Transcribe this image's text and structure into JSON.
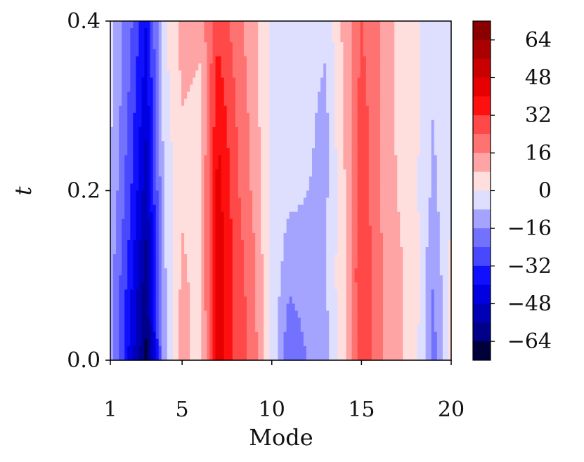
{
  "chart_data": {
    "type": "heatmap",
    "subtype": "filled-contour",
    "title": "",
    "xlabel": "Mode",
    "ylabel": "t",
    "xlim": [
      1,
      20
    ],
    "ylim": [
      0.0,
      0.4
    ],
    "x_ticks": [
      1,
      5,
      10,
      15,
      20
    ],
    "x_tick_labels": [
      "1",
      "5",
      "10",
      "15",
      "20"
    ],
    "y_ticks": [
      0.0,
      0.2,
      0.4
    ],
    "y_tick_labels": [
      "0.0",
      "0.2",
      "0.4"
    ],
    "x": [
      1,
      2,
      3,
      4,
      5,
      6,
      7,
      8,
      9,
      10,
      11,
      12,
      13,
      14,
      15,
      16,
      17,
      18,
      19,
      20
    ],
    "y": [
      0.0,
      0.1,
      0.2,
      0.3,
      0.4
    ],
    "z": [
      [
        -10,
        -40,
        -66,
        -12,
        14,
        2,
        44,
        30,
        20,
        -2,
        -24,
        -16,
        -12,
        6,
        30,
        18,
        10,
        4,
        -20,
        2
      ],
      [
        -12,
        -34,
        -60,
        -10,
        10,
        4,
        46,
        30,
        18,
        -2,
        -14,
        -10,
        -8,
        6,
        32,
        18,
        10,
        4,
        -16,
        2
      ],
      [
        -8,
        -28,
        -52,
        -6,
        6,
        4,
        44,
        26,
        14,
        -2,
        -6,
        -8,
        -10,
        6,
        30,
        16,
        8,
        2,
        -10,
        0
      ],
      [
        -6,
        -24,
        -46,
        -4,
        8,
        6,
        38,
        24,
        12,
        -2,
        -4,
        -6,
        -10,
        8,
        28,
        16,
        6,
        2,
        -8,
        0
      ],
      [
        -6,
        -20,
        -40,
        -2,
        12,
        10,
        30,
        20,
        10,
        -2,
        -4,
        -4,
        -6,
        10,
        24,
        16,
        6,
        2,
        -8,
        0
      ]
    ],
    "colormap": "seismic",
    "colorbar": {
      "ticks": [
        64,
        48,
        32,
        16,
        0,
        -16,
        -32,
        -48,
        -64
      ],
      "tick_labels": [
        "64",
        "48",
        "32",
        "16",
        "0",
        "−16",
        "−32",
        "−48",
        "−64"
      ],
      "range": [
        -72,
        72
      ],
      "levels": 18,
      "colors_top_to_bottom": [
        "#8a0000",
        "#a90000",
        "#c80000",
        "#e60000",
        "#ff1010",
        "#ff4848",
        "#ff7272",
        "#ffa4a4",
        "#ffdede",
        "#dedeff",
        "#a4a4ff",
        "#7272ff",
        "#4848ff",
        "#1010ff",
        "#0000e0",
        "#0000b4",
        "#000088",
        "#00003a"
      ]
    }
  }
}
